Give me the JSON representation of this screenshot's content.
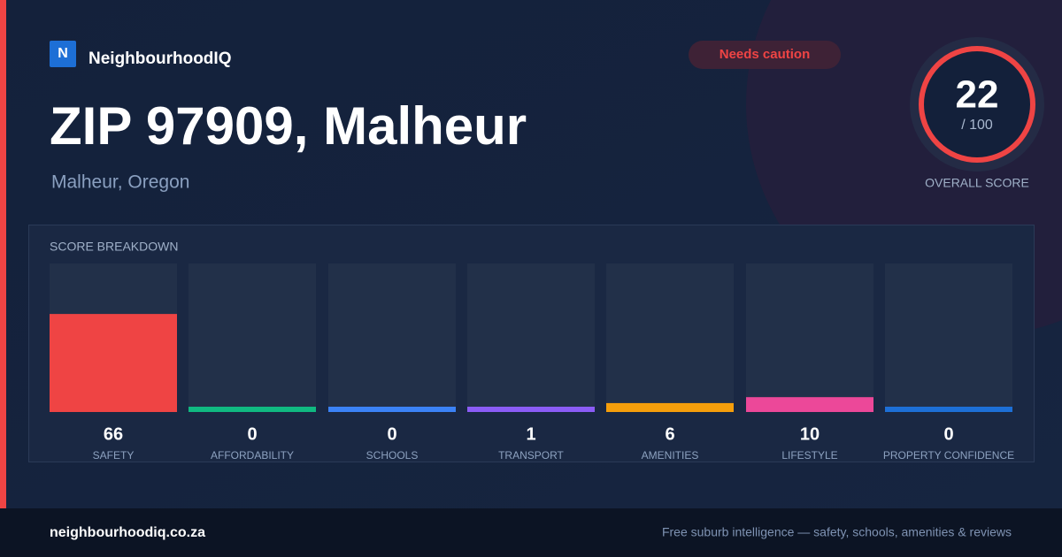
{
  "brand": {
    "logo": "N",
    "name": "NeighbourhoodIQ"
  },
  "badge": "Needs caution",
  "title": "ZIP 97909, Malheur",
  "subtitle": "Malheur, Oregon",
  "score": {
    "value": 22,
    "max_label": "/ 100",
    "label": "OVERALL SCORE"
  },
  "chart_data": {
    "type": "bar",
    "title": "SCORE BREAKDOWN",
    "categories": [
      "SAFETY",
      "AFFORDABILITY",
      "SCHOOLS",
      "TRANSPORT",
      "AMENITIES",
      "LIFESTYLE",
      "PROPERTY CONFIDENCE"
    ],
    "values": [
      66,
      0,
      0,
      1,
      6,
      10,
      0
    ],
    "colors": [
      "#ef4444",
      "#10b981",
      "#3b82f6",
      "#8b5cf6",
      "#f59e0b",
      "#ec4899",
      "#1d6fd6"
    ],
    "ylim": [
      0,
      100
    ]
  },
  "footer": {
    "site": "neighbourhoodiq.co.za",
    "tagline": "Free suburb intelligence — safety, schools, amenities & reviews"
  }
}
